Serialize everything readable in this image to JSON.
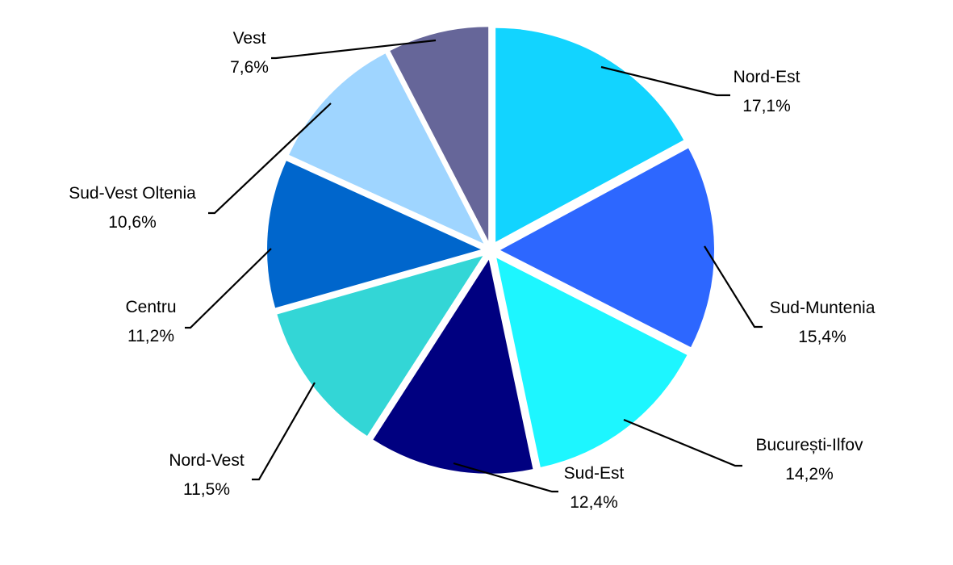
{
  "chart_data": {
    "type": "pie",
    "slices": [
      {
        "name": "Nord-Est",
        "value": 17.1,
        "value_label": "17,1%",
        "color": "#12D4FF"
      },
      {
        "name": "Sud-Muntenia",
        "value": 15.4,
        "value_label": "15,4%",
        "color": "#2D67FF"
      },
      {
        "name": "București-Ilfov",
        "value": 14.2,
        "value_label": "14,2%",
        "color": "#1DF6FF"
      },
      {
        "name": "Sud-Est",
        "value": 12.4,
        "value_label": "12,4%",
        "color": "#000080"
      },
      {
        "name": "Nord-Vest",
        "value": 11.5,
        "value_label": "11,5%",
        "color": "#33D6D6"
      },
      {
        "name": "Centru",
        "value": 11.2,
        "value_label": "11,2%",
        "color": "#0066CC"
      },
      {
        "name": "Sud-Vest Oltenia",
        "value": 10.6,
        "value_label": "10,6%",
        "color": "#9FD5FF"
      },
      {
        "name": "Vest",
        "value": 7.6,
        "value_label": "7,6%",
        "color": "#666699"
      }
    ],
    "start": "12 o'clock",
    "direction": "clockwise",
    "exploded": true,
    "legend": "none"
  }
}
